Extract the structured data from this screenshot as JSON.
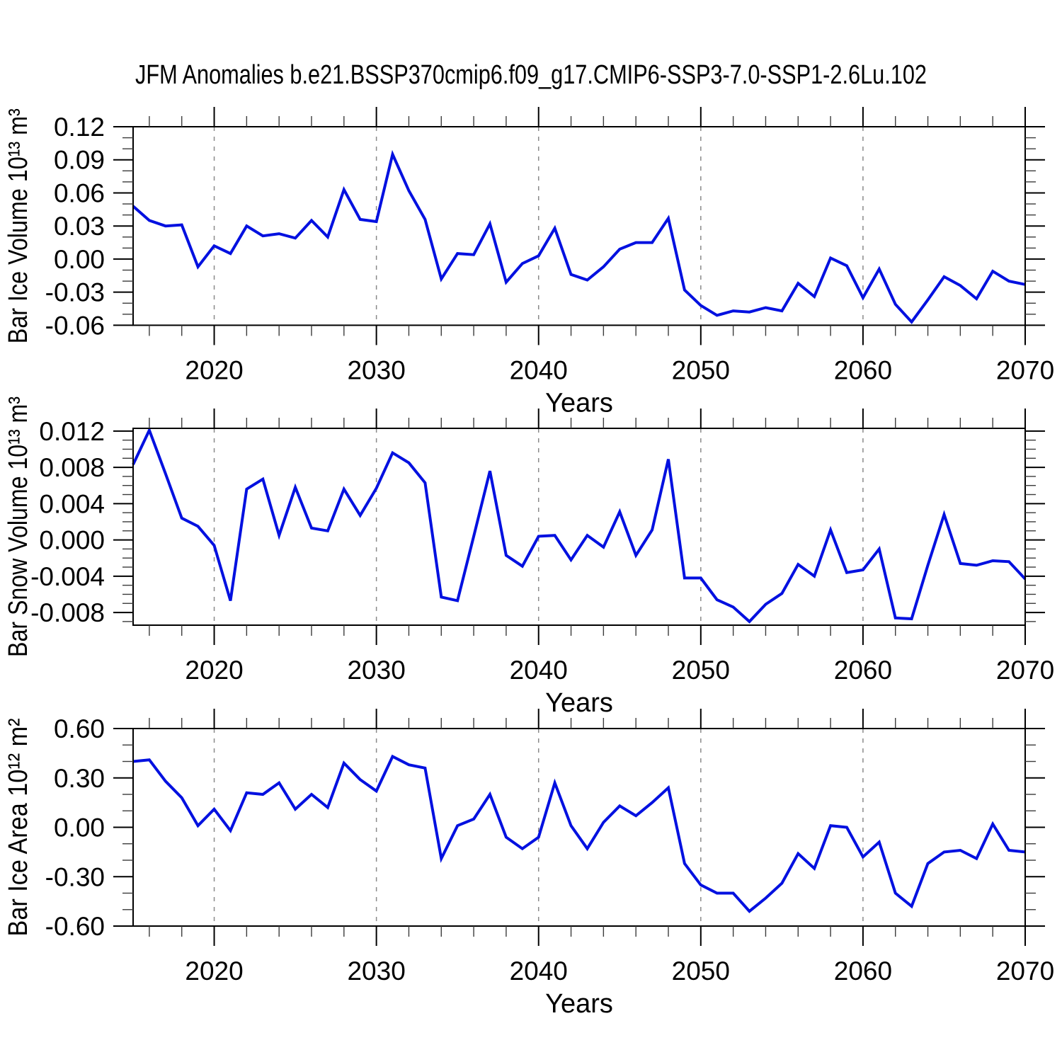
{
  "title": "JFM Anomalies b.e21.BSSP370cmip6.f09_g17.CMIP6-SSP3-7.0-SSP1-2.6Lu.102",
  "line_color": "#0010e0",
  "gridline_color": "#8a8a8a",
  "axis_color": "#000000",
  "years": [
    2015,
    2016,
    2017,
    2018,
    2019,
    2020,
    2021,
    2022,
    2023,
    2024,
    2025,
    2026,
    2027,
    2028,
    2029,
    2030,
    2031,
    2032,
    2033,
    2034,
    2035,
    2036,
    2037,
    2038,
    2039,
    2040,
    2041,
    2042,
    2043,
    2044,
    2045,
    2046,
    2047,
    2048,
    2049,
    2050,
    2051,
    2052,
    2053,
    2054,
    2055,
    2056,
    2057,
    2058,
    2059,
    2060,
    2061,
    2062,
    2063,
    2064,
    2065,
    2066,
    2067,
    2068,
    2069,
    2070
  ],
  "chart_data": [
    {
      "type": "line",
      "name": "ice-volume",
      "ylabel": "Bar Ice Volume 10¹³ m³",
      "xlabel": "Years",
      "xlim": [
        2015,
        2070
      ],
      "ylim": [
        -0.06,
        0.12
      ],
      "x_tick_labels": [
        "2020",
        "2030",
        "2040",
        "2050",
        "2060",
        "2070"
      ],
      "x_ticks": [
        2020,
        2030,
        2040,
        2050,
        2060,
        2070
      ],
      "x_minor_step": 2,
      "y_ticks": [
        0.12,
        0.09,
        0.06,
        0.03,
        0.0,
        -0.03,
        -0.06
      ],
      "y_tick_labels": [
        "0.12",
        "0.09",
        "0.06",
        "0.03",
        "0.00",
        "-0.03",
        "-0.06"
      ],
      "y_minor_step": 0.01,
      "grid_decades": [
        2020,
        2030,
        2040,
        2050,
        2060
      ],
      "values": [
        0.048,
        0.035,
        0.03,
        0.031,
        -0.007,
        0.012,
        0.005,
        0.03,
        0.021,
        0.023,
        0.019,
        0.035,
        0.02,
        0.063,
        0.036,
        0.034,
        0.095,
        0.062,
        0.036,
        -0.018,
        0.005,
        0.004,
        0.032,
        -0.021,
        -0.004,
        0.003,
        0.028,
        -0.014,
        -0.019,
        -0.007,
        0.009,
        0.015,
        0.015,
        0.037,
        -0.028,
        -0.042,
        -0.051,
        -0.047,
        -0.048,
        -0.044,
        -0.047,
        -0.022,
        -0.034,
        0.001,
        -0.006,
        -0.035,
        -0.009,
        -0.041,
        -0.057,
        -0.037,
        -0.016,
        -0.024,
        -0.036,
        -0.011,
        -0.02,
        -0.023
      ]
    },
    {
      "type": "line",
      "name": "snow-volume",
      "ylabel": "Bar Snow Volume 10¹³ m³",
      "xlabel": "Years",
      "xlim": [
        2015,
        2070
      ],
      "ylim": [
        -0.0094,
        0.0123
      ],
      "x_tick_labels": [
        "2020",
        "2030",
        "2040",
        "2050",
        "2060",
        "2070"
      ],
      "x_ticks": [
        2020,
        2030,
        2040,
        2050,
        2060,
        2070
      ],
      "x_minor_step": 2,
      "y_ticks": [
        0.012,
        0.008,
        0.004,
        0.0,
        -0.004,
        -0.008
      ],
      "y_tick_labels": [
        "0.012",
        "0.008",
        "0.004",
        "0.000",
        "-0.004",
        "-0.008"
      ],
      "y_minor_step": 0.001,
      "grid_decades": [
        2020,
        2030,
        2040,
        2050,
        2060
      ],
      "values": [
        0.0083,
        0.0121,
        0.0073,
        0.0024,
        0.0015,
        -0.0006,
        -0.0067,
        0.0056,
        0.0067,
        0.0005,
        0.0058,
        0.0013,
        0.001,
        0.0056,
        0.0027,
        0.0057,
        0.0096,
        0.0085,
        0.0063,
        -0.0063,
        -0.0067,
        0.0004,
        0.0076,
        -0.0017,
        -0.0029,
        0.0004,
        0.0005,
        -0.0022,
        0.0005,
        -0.0008,
        0.0031,
        -0.0017,
        0.0011,
        0.0089,
        -0.0042,
        -0.0042,
        -0.0066,
        -0.0074,
        -0.009,
        -0.0071,
        -0.0059,
        -0.0027,
        -0.004,
        0.0011,
        -0.0036,
        -0.0033,
        -0.001,
        -0.0086,
        -0.0087,
        -0.0028,
        0.0028,
        -0.0026,
        -0.0028,
        -0.0023,
        -0.0024,
        -0.0043
      ]
    },
    {
      "type": "line",
      "name": "ice-area",
      "ylabel": "Bar Ice Area 10¹² m²",
      "xlabel": "Years",
      "xlim": [
        2015,
        2070
      ],
      "ylim": [
        -0.6,
        0.6
      ],
      "x_tick_labels": [
        "2020",
        "2030",
        "2040",
        "2050",
        "2060",
        "2070"
      ],
      "x_ticks": [
        2020,
        2030,
        2040,
        2050,
        2060,
        2070
      ],
      "x_minor_step": 2,
      "y_ticks": [
        0.6,
        0.3,
        0.0,
        -0.3,
        -0.6
      ],
      "y_tick_labels": [
        "0.60",
        "0.30",
        "0.00",
        "-0.30",
        "-0.60"
      ],
      "y_minor_step": 0.1,
      "grid_decades": [
        2020,
        2030,
        2040,
        2050,
        2060
      ],
      "values": [
        0.4,
        0.41,
        0.28,
        0.18,
        0.01,
        0.11,
        -0.02,
        0.21,
        0.2,
        0.27,
        0.11,
        0.2,
        0.12,
        0.39,
        0.29,
        0.22,
        0.43,
        0.38,
        0.36,
        -0.19,
        0.01,
        0.05,
        0.2,
        -0.06,
        -0.13,
        -0.06,
        0.27,
        0.01,
        -0.13,
        0.03,
        0.13,
        0.07,
        0.15,
        0.24,
        -0.22,
        -0.35,
        -0.4,
        -0.4,
        -0.51,
        -0.43,
        -0.34,
        -0.16,
        -0.25,
        0.01,
        0.0,
        -0.18,
        -0.09,
        -0.4,
        -0.48,
        -0.22,
        -0.15,
        -0.14,
        -0.19,
        0.02,
        -0.14,
        -0.15
      ]
    }
  ]
}
